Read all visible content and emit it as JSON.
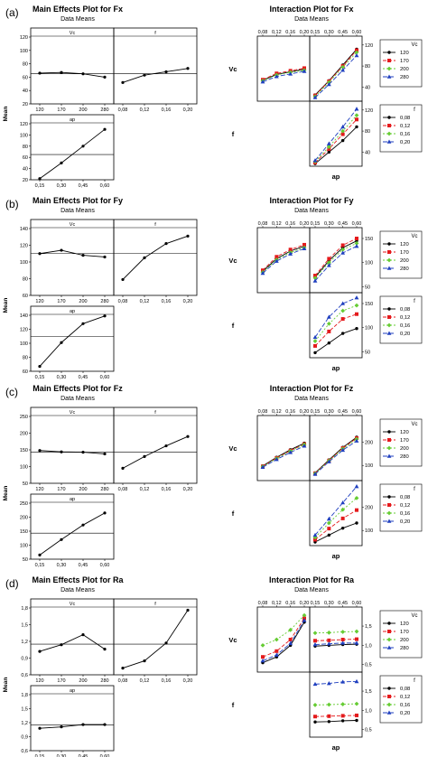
{
  "chart_data": [
    {
      "type": "line",
      "panel_label": "(a)",
      "title": "Main Effects Plot for Fx",
      "subtitle": "Data Means",
      "ylabel": "Mean",
      "ylim": [
        20,
        120
      ],
      "yticks": [
        "20",
        "40",
        "60",
        "80",
        "100",
        "120"
      ],
      "grand_mean": 65,
      "factors": [
        {
          "name": "Vc",
          "categories": [
            "120",
            "170",
            "200",
            "280"
          ],
          "values": [
            66,
            67,
            65,
            60
          ]
        },
        {
          "name": "f",
          "categories": [
            "0,08",
            "0,12",
            "0,16",
            "0,20"
          ],
          "values": [
            52,
            63,
            68,
            73
          ]
        },
        {
          "name": "ap",
          "categories": [
            "0,15",
            "0,30",
            "0,45",
            "0,60"
          ],
          "values": [
            22,
            50,
            80,
            110
          ]
        }
      ]
    },
    {
      "type": "line",
      "panel_label": "(a)",
      "title": "Interaction Plot for Fx",
      "subtitle": "Data Means",
      "row_labels": [
        "Vc",
        "f"
      ],
      "x_label": "ap",
      "x_ticks": [
        "0,08",
        "0,12",
        "0,16",
        "0,20",
        "0,15",
        "0,30",
        "0,45",
        "0,60"
      ],
      "yticks": [
        "40",
        "80",
        "120"
      ],
      "ylim": [
        20,
        130
      ],
      "legends": [
        {
          "title": "Vc",
          "series": [
            {
              "name": "120",
              "color": "#000000",
              "marker": "circle"
            },
            {
              "name": "170",
              "color": "#e41a1c",
              "marker": "square"
            },
            {
              "name": "200",
              "color": "#66cc33",
              "marker": "diamond"
            },
            {
              "name": "280",
              "color": "#1f3fbf",
              "marker": "triangle"
            }
          ]
        },
        {
          "title": "f",
          "series": [
            {
              "name": "0,08",
              "color": "#000000",
              "marker": "circle"
            },
            {
              "name": "0,12",
              "color": "#e41a1c",
              "marker": "square"
            },
            {
              "name": "0,16",
              "color": "#66cc33",
              "marker": "diamond"
            },
            {
              "name": "0,20",
              "color": "#1f3fbf",
              "marker": "triangle"
            }
          ]
        }
      ],
      "cells": [
        {
          "row": "Vc",
          "col": "f",
          "series": [
            [
              53,
              64,
              69,
              74
            ],
            [
              54,
              66,
              71,
              76
            ],
            [
              52,
              63,
              68,
              72
            ],
            [
              50,
              60,
              65,
              70
            ]
          ]
        },
        {
          "row": "Vc",
          "col": "ap",
          "series": [
            [
              25,
              52,
              82,
              112
            ],
            [
              24,
              51,
              80,
              110
            ],
            [
              22,
              49,
              78,
              106
            ],
            [
              20,
              45,
              72,
              100
            ]
          ]
        },
        {
          "row": "f",
          "col": "ap",
          "series": [
            [
              18,
              40,
              62,
              88
            ],
            [
              20,
              46,
              74,
              102
            ],
            [
              22,
              50,
              80,
              110
            ],
            [
              24,
              56,
              88,
              122
            ]
          ]
        }
      ]
    },
    {
      "type": "line",
      "panel_label": "(b)",
      "title": "Main Effects Plot for Fy",
      "subtitle": "Data Means",
      "ylabel": "Mean",
      "ylim": [
        60,
        140
      ],
      "yticks": [
        "60",
        "80",
        "100",
        "120",
        "140"
      ],
      "grand_mean": 110,
      "factors": [
        {
          "name": "Vc",
          "categories": [
            "120",
            "170",
            "200",
            "280"
          ],
          "values": [
            110,
            114,
            108,
            106
          ]
        },
        {
          "name": "f",
          "categories": [
            "0,08",
            "0,12",
            "0,16",
            "0,20"
          ],
          "values": [
            79,
            105,
            122,
            131
          ]
        },
        {
          "name": "ap",
          "categories": [
            "0,15",
            "0,30",
            "0,45",
            "0,60"
          ],
          "values": [
            67,
            101,
            128,
            139
          ]
        }
      ]
    },
    {
      "type": "line",
      "panel_label": "(b)",
      "title": "Interaction Plot for Fy",
      "subtitle": "Data Means",
      "row_labels": [
        "Vc",
        "f"
      ],
      "x_label": "ap",
      "x_ticks": [
        "0,08",
        "0,12",
        "0,16",
        "0,20",
        "0,15",
        "0,30",
        "0,45",
        "0,60"
      ],
      "yticks": [
        "50",
        "100",
        "150"
      ],
      "ylim": [
        45,
        165
      ],
      "legends": [
        {
          "title": "Vc",
          "series": [
            {
              "name": "120",
              "color": "#000000",
              "marker": "circle"
            },
            {
              "name": "170",
              "color": "#e41a1c",
              "marker": "square"
            },
            {
              "name": "200",
              "color": "#66cc33",
              "marker": "diamond"
            },
            {
              "name": "280",
              "color": "#1f3fbf",
              "marker": "triangle"
            }
          ]
        },
        {
          "title": "f",
          "series": [
            {
              "name": "0,08",
              "color": "#000000",
              "marker": "circle"
            },
            {
              "name": "0,12",
              "color": "#e41a1c",
              "marker": "square"
            },
            {
              "name": "0,16",
              "color": "#66cc33",
              "marker": "diamond"
            },
            {
              "name": "0,20",
              "color": "#1f3fbf",
              "marker": "triangle"
            }
          ]
        }
      ],
      "cells": [
        {
          "row": "Vc",
          "col": "f",
          "series": [
            [
              82,
              108,
              124,
              134
            ],
            [
              84,
              112,
              127,
              137
            ],
            [
              80,
              106,
              121,
              131
            ],
            [
              78,
              103,
              118,
              129
            ]
          ]
        },
        {
          "row": "Vc",
          "col": "ap",
          "series": [
            [
              70,
              104,
              131,
              145
            ],
            [
              73,
              108,
              136,
              150
            ],
            [
              68,
              100,
              127,
              140
            ],
            [
              62,
              94,
              120,
              134
            ]
          ]
        },
        {
          "row": "f",
          "col": "ap",
          "series": [
            [
              48,
              68,
              88,
              98
            ],
            [
              62,
              92,
              118,
              128
            ],
            [
              72,
              108,
              135,
              146
            ],
            [
              80,
              122,
              150,
              162
            ]
          ]
        }
      ]
    },
    {
      "type": "line",
      "panel_label": "(c)",
      "title": "Main Effects Plot for Fz",
      "subtitle": "Data Means",
      "ylabel": "Mean",
      "ylim": [
        50,
        250
      ],
      "yticks": [
        "50",
        "100",
        "150",
        "200",
        "250"
      ],
      "grand_mean": 143,
      "factors": [
        {
          "name": "Vc",
          "categories": [
            "120",
            "170",
            "200",
            "280"
          ],
          "values": [
            148,
            144,
            143,
            138
          ]
        },
        {
          "name": "f",
          "categories": [
            "0,08",
            "0,12",
            "0,16",
            "0,20"
          ],
          "values": [
            95,
            130,
            162,
            190
          ]
        },
        {
          "name": "ap",
          "categories": [
            "0,15",
            "0,30",
            "0,45",
            "0,60"
          ],
          "values": [
            65,
            120,
            172,
            215
          ]
        }
      ]
    },
    {
      "type": "line",
      "panel_label": "(c)",
      "title": "Interaction Plot for Fz",
      "subtitle": "Data Means",
      "row_labels": [
        "Vc",
        "f"
      ],
      "x_label": "ap",
      "x_ticks": [
        "0,08",
        "0,12",
        "0,16",
        "0,20",
        "0,15",
        "0,30",
        "0,45",
        "0,60"
      ],
      "yticks": [
        "100",
        "200"
      ],
      "ylim": [
        50,
        300
      ],
      "legends": [
        {
          "title": "Vc",
          "series": [
            {
              "name": "120",
              "color": "#000000",
              "marker": "circle"
            },
            {
              "name": "170",
              "color": "#e41a1c",
              "marker": "square"
            },
            {
              "name": "200",
              "color": "#66cc33",
              "marker": "diamond"
            },
            {
              "name": "280",
              "color": "#1f3fbf",
              "marker": "triangle"
            }
          ]
        },
        {
          "title": "f",
          "series": [
            {
              "name": "0,08",
              "color": "#000000",
              "marker": "circle"
            },
            {
              "name": "0,12",
              "color": "#e41a1c",
              "marker": "square"
            },
            {
              "name": "0,16",
              "color": "#66cc33",
              "marker": "diamond"
            },
            {
              "name": "0,20",
              "color": "#1f3fbf",
              "marker": "triangle"
            }
          ]
        }
      ],
      "cells": [
        {
          "row": "Vc",
          "col": "f",
          "series": [
            [
              98,
              135,
              168,
              196
            ],
            [
              96,
              132,
              164,
              192
            ],
            [
              95,
              130,
              162,
              190
            ],
            [
              92,
              126,
              156,
              184
            ]
          ]
        },
        {
          "row": "Vc",
          "col": "ap",
          "series": [
            [
              68,
              124,
              178,
              222
            ],
            [
              66,
              121,
              175,
              218
            ],
            [
              65,
              120,
              172,
              214
            ],
            [
              62,
              116,
              166,
              206
            ]
          ]
        },
        {
          "row": "f",
          "col": "ap",
          "series": [
            [
              50,
              80,
              110,
              132
            ],
            [
              60,
              108,
              152,
              188
            ],
            [
              70,
              132,
              190,
              240
            ],
            [
              80,
              150,
              220,
              290
            ]
          ]
        }
      ]
    },
    {
      "type": "line",
      "panel_label": "(d)",
      "title": "Main Effects Plot for Ra",
      "subtitle": "Data Means",
      "ylabel": "Mean",
      "ylim": [
        0.6,
        1.8
      ],
      "yticks": [
        "0,6",
        "0,9",
        "1,2",
        "1,5",
        "1,8"
      ],
      "grand_mean": 1.15,
      "factors": [
        {
          "name": "Vc",
          "categories": [
            "120",
            "170",
            "200",
            "280"
          ],
          "values": [
            1.02,
            1.14,
            1.32,
            1.06
          ]
        },
        {
          "name": "f",
          "categories": [
            "0,08",
            "0,12",
            "0,16",
            "0,20"
          ],
          "values": [
            0.72,
            0.85,
            1.17,
            1.76
          ]
        },
        {
          "name": "ap",
          "categories": [
            "0,15",
            "0,30",
            "0,45",
            "0,60"
          ],
          "values": [
            1.08,
            1.11,
            1.16,
            1.16
          ]
        }
      ]
    },
    {
      "type": "line",
      "panel_label": "(d)",
      "title": "Interaction Plot for Ra",
      "subtitle": "Data Means",
      "row_labels": [
        "Vc",
        "f"
      ],
      "x_label": "ap",
      "x_ticks": [
        "0,08",
        "0,12",
        "0,16",
        "0,20",
        "0,15",
        "0,30",
        "0,45",
        "0,60"
      ],
      "yticks": [
        "0,5",
        "1,0",
        "1,5"
      ],
      "ylim": [
        0.4,
        1.9
      ],
      "legends": [
        {
          "title": "Vc",
          "series": [
            {
              "name": "120",
              "color": "#000000",
              "marker": "circle"
            },
            {
              "name": "170",
              "color": "#e41a1c",
              "marker": "square"
            },
            {
              "name": "200",
              "color": "#66cc33",
              "marker": "diamond"
            },
            {
              "name": "280",
              "color": "#1f3fbf",
              "marker": "triangle"
            }
          ]
        },
        {
          "title": "f",
          "series": [
            {
              "name": "0,08",
              "color": "#000000",
              "marker": "circle"
            },
            {
              "name": "0,12",
              "color": "#e41a1c",
              "marker": "square"
            },
            {
              "name": "0,16",
              "color": "#66cc33",
              "marker": "diamond"
            },
            {
              "name": "0,20",
              "color": "#1f3fbf",
              "marker": "triangle"
            }
          ]
        }
      ],
      "cells": [
        {
          "row": "Vc",
          "col": "f",
          "series": [
            [
              0.55,
              0.7,
              1.0,
              1.6
            ],
            [
              0.7,
              0.85,
              1.15,
              1.7
            ],
            [
              1.0,
              1.15,
              1.4,
              1.78
            ],
            [
              0.6,
              0.75,
              1.05,
              1.65
            ]
          ]
        },
        {
          "row": "Vc",
          "col": "ap",
          "series": [
            [
              0.98,
              1.0,
              1.02,
              1.03
            ],
            [
              1.12,
              1.13,
              1.15,
              1.16
            ],
            [
              1.32,
              1.33,
              1.35,
              1.36
            ],
            [
              1.02,
              1.04,
              1.06,
              1.06
            ]
          ]
        },
        {
          "row": "f",
          "col": "ap",
          "series": [
            [
              0.7,
              0.71,
              0.73,
              0.74
            ],
            [
              0.84,
              0.85,
              0.86,
              0.87
            ],
            [
              1.14,
              1.15,
              1.16,
              1.17
            ],
            [
              1.68,
              1.7,
              1.74,
              1.75
            ]
          ]
        }
      ]
    }
  ]
}
